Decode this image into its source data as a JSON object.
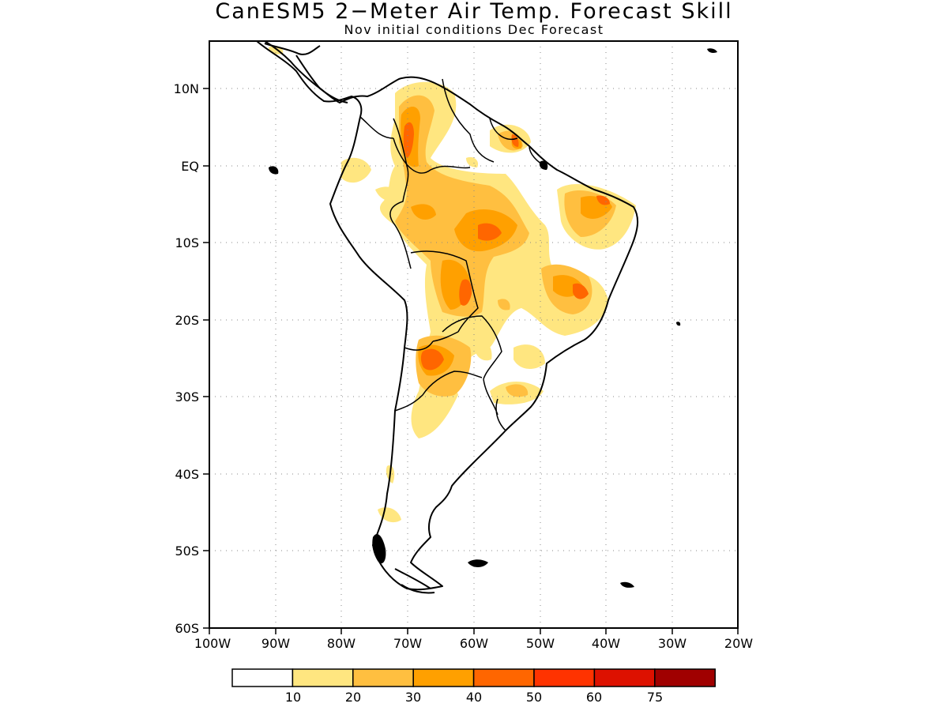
{
  "title": "CanESM5 2−Meter Air Temp. Forecast Skill",
  "subtitle": "Nov initial conditions  Dec Forecast",
  "map": {
    "lon_range": [
      -100,
      -20
    ],
    "lat_range": [
      -60,
      15
    ],
    "x_ticks": [
      "100W",
      "90W",
      "80W",
      "70W",
      "60W",
      "50W",
      "40W",
      "30W",
      "20W"
    ],
    "y_ticks": [
      "10N",
      "EQ",
      "10S",
      "20S",
      "30S",
      "40S",
      "50S",
      "60S"
    ],
    "grid": "dotted",
    "region": "South America"
  },
  "colorbar": {
    "labels": [
      "10",
      "20",
      "30",
      "40",
      "50",
      "60",
      "75"
    ],
    "colors": [
      "#ffffff",
      "#ffe680",
      "#ffbf40",
      "#ffa000",
      "#ff6600",
      "#ff3300",
      "#dd1100",
      "#a00000"
    ]
  }
}
